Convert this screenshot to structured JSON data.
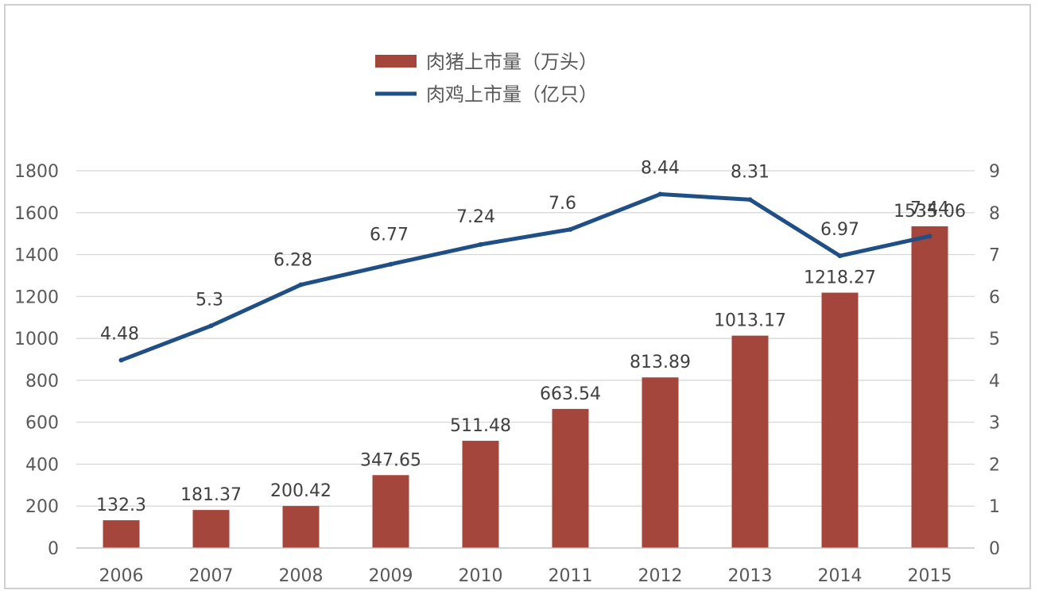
{
  "chart_data": {
    "type": "bar",
    "categories": [
      "2006",
      "2007",
      "2008",
      "2009",
      "2010",
      "2011",
      "2012",
      "2013",
      "2014",
      "2015"
    ],
    "series": [
      {
        "name": "肉猪上市量（万头）",
        "type": "bar",
        "axis": "left",
        "values": [
          132.3,
          181.37,
          200.42,
          347.65,
          511.48,
          663.54,
          813.89,
          1013.17,
          1218.27,
          1535.06
        ],
        "labels": [
          "132.3",
          "181.37",
          "200.42",
          "347.65",
          "511.48",
          "663.54",
          "813.89",
          "1013.17",
          "1218.27",
          "1535.06"
        ]
      },
      {
        "name": "肉鸡上市量（亿只）",
        "type": "line",
        "axis": "right",
        "values": [
          4.48,
          5.3,
          6.28,
          6.77,
          7.24,
          7.6,
          8.44,
          8.31,
          6.97,
          7.44
        ],
        "labels": [
          "4.48",
          "5.3",
          "6.28",
          "6.77",
          "7.24",
          "7.6",
          "8.44",
          "8.31",
          "6.97",
          "7.44"
        ]
      }
    ],
    "y_left": {
      "min": 0,
      "max": 1800,
      "ticks": [
        "0",
        "200",
        "400",
        "600",
        "800",
        "1000",
        "1200",
        "1400",
        "1600",
        "1800"
      ]
    },
    "y_right": {
      "min": 0,
      "max": 9,
      "ticks": [
        "0",
        "1",
        "2",
        "3",
        "4",
        "5",
        "6",
        "7",
        "8",
        "9"
      ]
    },
    "grid": true,
    "legend": "top-center",
    "colors": {
      "bar": "#a5463d",
      "line": "#1f4f84",
      "grid": "#d4d4d4",
      "text": "#595959"
    }
  }
}
